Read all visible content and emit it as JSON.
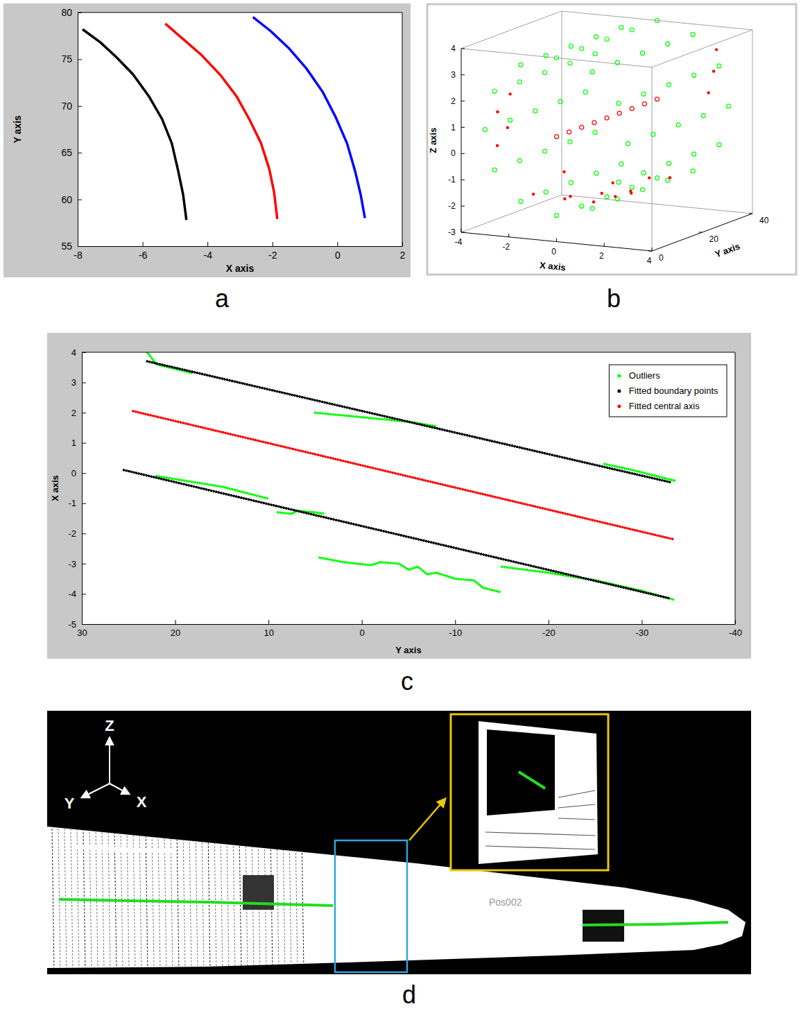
{
  "chart_data": [
    {
      "type": "line",
      "panel": "a",
      "x_label": "X axis",
      "y_label": "Y axis",
      "xlim": [
        -8,
        2
      ],
      "ylim": [
        55,
        80
      ],
      "xticks": [
        -8,
        -6,
        -4,
        -2,
        0,
        2
      ],
      "yticks": [
        55,
        60,
        65,
        70,
        75,
        80
      ],
      "series": [
        {
          "color": "#000000",
          "line_style": "solid",
          "x": [
            -7.85,
            -7.3,
            -6.8,
            -6.3,
            -5.8,
            -5.4,
            -5.1,
            -4.9,
            -4.75,
            -4.65
          ],
          "values": [
            78.2,
            76.8,
            75.2,
            73.4,
            71,
            68.6,
            66,
            63,
            60.5,
            57.8
          ]
        },
        {
          "color": "#ff0000",
          "line_style": "solid",
          "x": [
            -5.3,
            -4.8,
            -4.2,
            -3.6,
            -3.1,
            -2.7,
            -2.35,
            -2.1,
            -1.95,
            -1.85
          ],
          "values": [
            78.8,
            77.3,
            75.5,
            73.3,
            71,
            68.5,
            66,
            63.3,
            60.8,
            57.9
          ]
        },
        {
          "color": "#0000ff",
          "line_style": "solid",
          "x": [
            -2.6,
            -2.05,
            -1.5,
            -0.95,
            -0.45,
            -0.05,
            0.3,
            0.55,
            0.72,
            0.85
          ],
          "values": [
            79.5,
            78,
            76.2,
            74,
            71.5,
            68.8,
            66,
            63,
            60.5,
            58
          ]
        }
      ]
    },
    {
      "type": "scatter3d",
      "panel": "b",
      "x_label": "X axis",
      "y_label": "Y axis",
      "z_label": "Z axis",
      "xlim": [
        -4,
        4
      ],
      "ylim": [
        0,
        40
      ],
      "zlim": [
        -3,
        4
      ],
      "xticks": [
        -4,
        -2,
        0,
        2,
        4
      ],
      "yticks": [
        0,
        20,
        40
      ],
      "zticks": [
        -3,
        -2,
        -1,
        0,
        1,
        2,
        3,
        4
      ],
      "series": [
        {
          "color": "#00ff00",
          "marker": "circle",
          "points": [
            [
              3,
              0,
              1
            ],
            [
              2.6,
              0,
              2.5
            ],
            [
              1.5,
              0,
              3.6
            ],
            [
              0,
              0,
              4
            ],
            [
              -1.5,
              0,
              3.6
            ],
            [
              -2.6,
              0,
              2.5
            ],
            [
              -3,
              0,
              1
            ],
            [
              -2.6,
              0,
              -0.5
            ],
            [
              -1.5,
              0,
              -1.6
            ],
            [
              0,
              0,
              -2
            ],
            [
              1.5,
              0,
              -1.6
            ],
            [
              2.6,
              0,
              -0.5
            ],
            [
              3,
              10,
              1
            ],
            [
              2.6,
              10,
              2.5
            ],
            [
              1.5,
              10,
              3.6
            ],
            [
              0,
              10,
              4
            ],
            [
              -1.5,
              10,
              3.6
            ],
            [
              -2.6,
              10,
              2.5
            ],
            [
              -3,
              10,
              1
            ],
            [
              -2.6,
              10,
              -0.5
            ],
            [
              -1.5,
              10,
              -1.6
            ],
            [
              0,
              10,
              -2
            ],
            [
              1.5,
              10,
              -1.6
            ],
            [
              2.6,
              10,
              -0.5
            ],
            [
              3,
              20,
              1
            ],
            [
              2.6,
              20,
              2.5
            ],
            [
              1.5,
              20,
              3.6
            ],
            [
              0,
              20,
              4
            ],
            [
              -1.5,
              20,
              3.6
            ],
            [
              -2.6,
              20,
              2.5
            ],
            [
              -3,
              20,
              1
            ],
            [
              -2.6,
              20,
              -0.5
            ],
            [
              -1.5,
              20,
              -1.6
            ],
            [
              0,
              20,
              -2
            ],
            [
              1.5,
              20,
              -1.6
            ],
            [
              2.6,
              20,
              -0.5
            ],
            [
              3,
              30,
              1
            ],
            [
              2.6,
              30,
              2.5
            ],
            [
              1.5,
              30,
              3.6
            ],
            [
              0,
              30,
              4
            ],
            [
              -1.5,
              30,
              3.6
            ],
            [
              -2.6,
              30,
              2.5
            ],
            [
              -3,
              30,
              1
            ],
            [
              -2.6,
              30,
              -0.5
            ],
            [
              -1.5,
              30,
              -1.6
            ],
            [
              0,
              30,
              -2
            ],
            [
              1.5,
              30,
              -1.6
            ],
            [
              2.6,
              30,
              -0.5
            ],
            [
              3,
              40,
              1
            ],
            [
              2.6,
              40,
              2.5
            ],
            [
              1.5,
              40,
              3.6
            ],
            [
              0,
              40,
              4
            ],
            [
              -1.5,
              40,
              3.6
            ],
            [
              -2.6,
              40,
              2.5
            ],
            [
              -3,
              40,
              1
            ],
            [
              -2.6,
              40,
              -0.5
            ],
            [
              -1.5,
              40,
              -1.6
            ],
            [
              0,
              40,
              -2
            ],
            [
              1.5,
              40,
              -1.6
            ],
            [
              2.6,
              40,
              -0.5
            ]
          ]
        },
        {
          "color": "#ff0000",
          "marker": "dot",
          "points": [
            [
              -1.5,
              5,
              -1.5
            ],
            [
              -0.5,
              8,
              -1.7
            ],
            [
              0.5,
              10,
              -1.8
            ],
            [
              1.2,
              12,
              -1.6
            ],
            [
              -1,
              15,
              -1.9
            ],
            [
              0,
              18,
              -1.8
            ],
            [
              1,
              20,
              -1.7
            ],
            [
              -2,
              22,
              -1.3
            ],
            [
              0.5,
              25,
              -2
            ],
            [
              1.8,
              28,
              -1.4
            ],
            [
              -0.8,
              30,
              -1.9
            ],
            [
              0.2,
              35,
              -1.8
            ],
            [
              -3,
              5,
              1.5
            ],
            [
              -2.9,
              8,
              0.8
            ],
            [
              -3,
              10,
              2
            ],
            [
              -2.8,
              3,
              0.3
            ],
            [
              2.9,
              35,
              2.5
            ],
            [
              2.7,
              38,
              3.2
            ],
            [
              3,
              32,
              1.8
            ]
          ]
        },
        {
          "color": "#ff0000",
          "marker": "circle",
          "points": [
            [
              0,
              0,
              1
            ],
            [
              0,
              5,
              1
            ],
            [
              0,
              10,
              1
            ],
            [
              0,
              15,
              1
            ],
            [
              0,
              20,
              1
            ],
            [
              0,
              25,
              1
            ],
            [
              0,
              30,
              1
            ],
            [
              0,
              35,
              1
            ],
            [
              0,
              40,
              1
            ]
          ]
        }
      ]
    },
    {
      "type": "line",
      "panel": "c",
      "x_label": "Y axis",
      "y_label": "X axis",
      "xlim": [
        30,
        -40
      ],
      "ylim": [
        -5,
        4
      ],
      "xticks": [
        30,
        20,
        10,
        0,
        -10,
        -20,
        -30,
        -40
      ],
      "yticks": [
        -5,
        -4,
        -3,
        -2,
        -1,
        0,
        1,
        2,
        3,
        4
      ],
      "legend": "upper right",
      "series": [
        {
          "name": "Outliers",
          "color": "#00ff00",
          "line_style": "dotted",
          "x": [
            23,
            22,
            20,
            18,
            null,
            5,
            0,
            -5,
            -8,
            null,
            -26,
            -29,
            -33.5,
            null,
            22,
            15,
            10,
            null,
            9,
            7.5,
            7,
            5,
            4,
            null,
            4.5,
            2,
            -1,
            -2,
            -4,
            -5,
            -6,
            -7,
            -8,
            -10,
            -12,
            -13,
            -15,
            null,
            -15,
            -20,
            -25,
            -30,
            -33.5
          ],
          "values": [
            4,
            3.6,
            3.45,
            3.3,
            null,
            2,
            1.85,
            1.7,
            1.55,
            null,
            0.3,
            0.1,
            -0.25,
            null,
            -0.1,
            -0.45,
            -0.85,
            null,
            -1.3,
            -1.35,
            -1.25,
            -1.3,
            -1.35,
            null,
            -2.8,
            -2.95,
            -3.05,
            -2.95,
            -3,
            -3.2,
            -3.1,
            -3.35,
            -3.3,
            -3.5,
            -3.55,
            -3.8,
            -3.95,
            null,
            -3.1,
            -3.3,
            -3.55,
            -3.9,
            -4.2
          ]
        },
        {
          "name": "Fitted boundary points",
          "color": "#000000",
          "line_style": "dotted",
          "x": [
            23,
            10,
            -10,
            -33,
            null,
            25.5,
            10,
            -10,
            -33
          ],
          "values": [
            3.7,
            2.77,
            1.34,
            -0.3,
            null,
            0.1,
            -1.03,
            -2.48,
            -4.15
          ]
        },
        {
          "name": "Fitted central axis",
          "color": "#ff0000",
          "line_style": "dotted",
          "x": [
            24.5,
            10,
            -10,
            -33.5
          ],
          "values": [
            2.05,
            0.99,
            -0.48,
            -2.2
          ]
        }
      ]
    },
    {
      "type": "image",
      "panel": "d",
      "axis_labels": [
        "Z",
        "Y",
        "X"
      ],
      "annotation": "Pos002"
    }
  ]
}
